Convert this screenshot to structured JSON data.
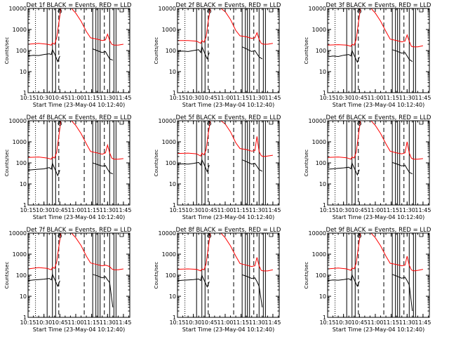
{
  "chart_data": {
    "type": "line",
    "yscale": "log",
    "ylim": [
      1,
      10000
    ],
    "xlim": [
      "10:15",
      "11:51"
    ],
    "y_ticks": [
      "1",
      "10",
      "100",
      "1000",
      "10000"
    ],
    "x_ticks": [
      "10:15",
      "10:30",
      "10:45",
      "11:00",
      "11:15",
      "11:30",
      "11:45"
    ],
    "xlabel": "Start Time (23-May-04 10:12:40)",
    "ylabel": "Counts/sec",
    "series_colors": {
      "events": "#000000",
      "lld": "#ff0000"
    },
    "panels": [
      {
        "title": "Det 1f BLACK = Events, RED = LLD",
        "series": [
          {
            "key": "lld",
            "x": [
              "10:15",
              "10:25",
              "10:33",
              "10:37",
              "10:38",
              "10:40",
              "10:42",
              "10:44",
              "10:46",
              "10:50",
              "10:56",
              "11:00",
              "11:05",
              "11:10",
              "11:14",
              "11:20",
              "11:25",
              "11:28",
              "11:30",
              "11:32",
              "11:34",
              "11:36",
              "11:40",
              "11:45"
            ],
            "y": [
              200,
              220,
              200,
              180,
              230,
              200,
              400,
              2000,
              10000,
              10000,
              10000,
              6000,
              2500,
              800,
              400,
              350,
              300,
              320,
              600,
              300,
              200,
              180,
              180,
              200
            ]
          },
          {
            "key": "events",
            "x": [
              "10:15",
              "10:20",
              "10:25",
              "10:30",
              "10:35",
              "10:37",
              "10:38",
              "10:40",
              "10:43",
              "10:45"
            ],
            "y": [
              55,
              60,
              58,
              65,
              70,
              65,
              110,
              70,
              30,
              55
            ],
            "x2": [
              "11:16",
              "11:20",
              "11:25",
              "11:28",
              "11:30",
              "11:32",
              "11:35"
            ],
            "y2": [
              120,
              100,
              80,
              90,
              60,
              40,
              35
            ]
          }
        ]
      },
      {
        "title": "Det 2f BLACK = Events, RED = LLD",
        "series": [
          {
            "key": "lld",
            "x": [
              "10:15",
              "10:25",
              "10:33",
              "10:37",
              "10:38",
              "10:40",
              "10:42",
              "10:44",
              "10:46",
              "10:50",
              "10:56",
              "11:00",
              "11:05",
              "11:10",
              "11:14",
              "11:20",
              "11:25",
              "11:28",
              "11:30",
              "11:32",
              "11:34",
              "11:36",
              "11:40",
              "11:45"
            ],
            "y": [
              300,
              300,
              280,
              220,
              300,
              250,
              450,
              2500,
              10000,
              10000,
              10000,
              7000,
              3000,
              900,
              500,
              450,
              380,
              400,
              700,
              350,
              220,
              200,
              200,
              220
            ]
          },
          {
            "key": "events",
            "x": [
              "10:15",
              "10:20",
              "10:25",
              "10:30",
              "10:35",
              "10:37",
              "10:38",
              "10:40",
              "10:43",
              "10:45"
            ],
            "y": [
              90,
              95,
              90,
              100,
              110,
              80,
              150,
              90,
              40,
              80
            ],
            "x2": [
              "11:16",
              "11:20",
              "11:25",
              "11:28",
              "11:30",
              "11:32",
              "11:35"
            ],
            "y2": [
              150,
              120,
              90,
              100,
              70,
              50,
              40
            ]
          }
        ]
      },
      {
        "title": "Det 3f BLACK = Events, RED = LLD",
        "series": [
          {
            "key": "lld",
            "x": [
              "10:15",
              "10:25",
              "10:33",
              "10:37",
              "10:38",
              "10:40",
              "10:42",
              "10:44",
              "10:46",
              "10:50",
              "10:56",
              "11:00",
              "11:05",
              "11:10",
              "11:14",
              "11:20",
              "11:25",
              "11:28",
              "11:30",
              "11:32",
              "11:34",
              "11:36",
              "11:40",
              "11:45"
            ],
            "y": [
              180,
              190,
              180,
              160,
              200,
              180,
              350,
              2000,
              10000,
              10000,
              10000,
              6000,
              2500,
              800,
              350,
              300,
              260,
              280,
              550,
              280,
              160,
              150,
              150,
              170
            ]
          },
          {
            "key": "events",
            "x": [
              "10:15",
              "10:20",
              "10:25",
              "10:30",
              "10:35",
              "10:37",
              "10:38",
              "10:40",
              "10:43",
              "10:45"
            ],
            "y": [
              50,
              55,
              52,
              60,
              65,
              55,
              100,
              60,
              28,
              50
            ],
            "x2": [
              "11:16",
              "11:20",
              "11:25",
              "11:28",
              "11:30",
              "11:32",
              "11:35"
            ],
            "y2": [
              110,
              95,
              75,
              80,
              55,
              38,
              30
            ]
          }
        ]
      },
      {
        "title": "Det 4f BLACK = Events, RED = LLD",
        "series": [
          {
            "key": "lld",
            "x": [
              "10:15",
              "10:25",
              "10:33",
              "10:37",
              "10:38",
              "10:40",
              "10:42",
              "10:44",
              "10:46",
              "10:50",
              "10:56",
              "11:00",
              "11:05",
              "11:10",
              "11:14",
              "11:20",
              "11:25",
              "11:28",
              "11:30",
              "11:32",
              "11:34",
              "11:36",
              "11:40",
              "11:45"
            ],
            "y": [
              180,
              190,
              170,
              150,
              190,
              170,
              320,
              1800,
              10000,
              10000,
              10000,
              6000,
              2500,
              800,
              350,
              300,
              260,
              300,
              700,
              300,
              170,
              150,
              150,
              160
            ]
          },
          {
            "key": "events",
            "x": [
              "10:15",
              "10:20",
              "10:25",
              "10:30",
              "10:35",
              "10:37",
              "10:38",
              "10:40",
              "10:43",
              "10:45"
            ],
            "y": [
              45,
              48,
              50,
              52,
              60,
              50,
              95,
              55,
              25,
              45
            ],
            "x2": [
              "11:16",
              "11:20",
              "11:25",
              "11:28",
              "11:30",
              "11:32",
              "11:35"
            ],
            "y2": [
              100,
              85,
              70,
              75,
              50,
              35,
              30
            ]
          }
        ]
      },
      {
        "title": "Det 5f BLACK = Events, RED = LLD",
        "series": [
          {
            "key": "lld",
            "x": [
              "10:15",
              "10:25",
              "10:33",
              "10:37",
              "10:38",
              "10:40",
              "10:42",
              "10:44",
              "10:46",
              "10:50",
              "10:56",
              "11:00",
              "11:05",
              "11:10",
              "11:14",
              "11:20",
              "11:25",
              "11:28",
              "11:30",
              "11:32",
              "11:34",
              "11:36",
              "11:40",
              "11:45"
            ],
            "y": [
              280,
              290,
              270,
              210,
              290,
              240,
              420,
              2400,
              10000,
              10000,
              10000,
              7000,
              3000,
              900,
              480,
              430,
              360,
              380,
              1800,
              350,
              220,
              200,
              210,
              230
            ]
          },
          {
            "key": "events",
            "x": [
              "10:15",
              "10:20",
              "10:25",
              "10:30",
              "10:35",
              "10:37",
              "10:38",
              "10:40",
              "10:43",
              "10:45"
            ],
            "y": [
              85,
              90,
              88,
              95,
              105,
              78,
              140,
              88,
              38,
              78
            ],
            "x2": [
              "11:16",
              "11:20",
              "11:25",
              "11:28",
              "11:30",
              "11:32",
              "11:35"
            ],
            "y2": [
              140,
              115,
              88,
              95,
              68,
              48,
              40
            ]
          }
        ]
      },
      {
        "title": "Det 6f BLACK = Events, RED = LLD",
        "series": [
          {
            "key": "lld",
            "x": [
              "10:15",
              "10:25",
              "10:33",
              "10:37",
              "10:38",
              "10:40",
              "10:42",
              "10:44",
              "10:46",
              "10:50",
              "10:56",
              "11:00",
              "11:05",
              "11:10",
              "11:14",
              "11:20",
              "11:25",
              "11:28",
              "11:30",
              "11:32",
              "11:34",
              "11:36",
              "11:40",
              "11:45"
            ],
            "y": [
              180,
              190,
              175,
              150,
              190,
              170,
              330,
              1900,
              10000,
              10000,
              10000,
              6000,
              2500,
              800,
              360,
              300,
              270,
              300,
              1000,
              300,
              170,
              150,
              150,
              160
            ]
          },
          {
            "key": "events",
            "x": [
              "10:15",
              "10:20",
              "10:25",
              "10:30",
              "10:35",
              "10:37",
              "10:38",
              "10:40",
              "10:43",
              "10:45"
            ],
            "y": [
              50,
              52,
              55,
              58,
              62,
              52,
              98,
              58,
              27,
              48
            ],
            "x2": [
              "11:16",
              "11:20",
              "11:25",
              "11:28",
              "11:30",
              "11:32",
              "11:35"
            ],
            "y2": [
              105,
              90,
              72,
              78,
              52,
              36,
              30
            ]
          }
        ]
      },
      {
        "title": "Det 7f BLACK = Events, RED = LLD",
        "series": [
          {
            "key": "lld",
            "x": [
              "10:15",
              "10:25",
              "10:33",
              "10:37",
              "10:38",
              "10:40",
              "10:42",
              "10:44",
              "10:46",
              "10:50",
              "10:56",
              "11:00",
              "11:05",
              "11:10",
              "11:14",
              "11:20",
              "11:25",
              "11:28",
              "11:30",
              "11:32",
              "11:34",
              "11:36",
              "11:40",
              "11:45"
            ],
            "y": [
              200,
              230,
              210,
              180,
              240,
              210,
              420,
              2200,
              10000,
              10000,
              10000,
              6000,
              2600,
              800,
              380,
              320,
              280,
              300,
              280,
              260,
              200,
              180,
              180,
              200
            ]
          },
          {
            "key": "events",
            "x": [
              "10:15",
              "10:20",
              "10:25",
              "10:30",
              "10:35",
              "10:37",
              "10:38",
              "10:40",
              "10:43",
              "10:45"
            ],
            "y": [
              55,
              60,
              62,
              65,
              70,
              60,
              110,
              65,
              30,
              55
            ],
            "x2": [
              "11:16",
              "11:20",
              "11:25",
              "11:28",
              "11:30",
              "11:32",
              "11:35"
            ],
            "y2": [
              110,
              95,
              75,
              85,
              60,
              45,
              3
            ]
          }
        ]
      },
      {
        "title": "Det 8f BLACK = Events, RED = LLD",
        "series": [
          {
            "key": "lld",
            "x": [
              "10:15",
              "10:25",
              "10:33",
              "10:37",
              "10:38",
              "10:40",
              "10:42",
              "10:44",
              "10:46",
              "10:50",
              "10:56",
              "11:00",
              "11:05",
              "11:10",
              "11:14",
              "11:20",
              "11:25",
              "11:28",
              "11:30",
              "11:32",
              "11:34",
              "11:36",
              "11:40",
              "11:45"
            ],
            "y": [
              190,
              200,
              190,
              160,
              200,
              180,
              350,
              2000,
              10000,
              10000,
              10000,
              6000,
              2500,
              800,
              360,
              300,
              260,
              280,
              700,
              280,
              170,
              160,
              160,
              180
            ]
          },
          {
            "key": "events",
            "x": [
              "10:15",
              "10:20",
              "10:25",
              "10:30",
              "10:35",
              "10:37",
              "10:38",
              "10:40",
              "10:43",
              "10:45"
            ],
            "y": [
              55,
              58,
              60,
              62,
              66,
              56,
              100,
              60,
              28,
              50
            ],
            "x2": [
              "11:16",
              "11:20",
              "11:25",
              "11:28",
              "11:30",
              "11:32",
              "11:35"
            ],
            "y2": [
              105,
              90,
              70,
              75,
              50,
              30,
              3
            ]
          }
        ]
      },
      {
        "title": "Det 9f BLACK = Events, RED = LLD",
        "series": [
          {
            "key": "lld",
            "x": [
              "10:15",
              "10:25",
              "10:33",
              "10:37",
              "10:38",
              "10:40",
              "10:42",
              "10:44",
              "10:46",
              "10:50",
              "10:56",
              "11:00",
              "11:05",
              "11:10",
              "11:14",
              "11:20",
              "11:25",
              "11:28",
              "11:30",
              "11:32",
              "11:34",
              "11:36",
              "11:40",
              "11:45"
            ],
            "y": [
              200,
              220,
              200,
              170,
              220,
              200,
              380,
              2100,
              10000,
              10000,
              10000,
              6000,
              2500,
              800,
              370,
              320,
              280,
              300,
              800,
              300,
              180,
              160,
              170,
              190
            ]
          },
          {
            "key": "events",
            "x": [
              "10:15",
              "10:20",
              "10:25",
              "10:30",
              "10:35",
              "10:37",
              "10:38",
              "10:40",
              "10:43",
              "10:45"
            ],
            "y": [
              55,
              60,
              58,
              62,
              68,
              58,
              105,
              62,
              30,
              52
            ],
            "x2": [
              "11:16",
              "11:20",
              "11:25",
              "11:28",
              "11:30",
              "11:32",
              "11:35"
            ],
            "y2": [
              110,
              92,
              72,
              80,
              55,
              35,
              2
            ]
          }
        ]
      }
    ],
    "vlines": {
      "solid": [
        "10:33",
        "10:38",
        "10:41",
        "11:16",
        "11:19",
        "11:21",
        "11:23",
        "11:32",
        "11:36",
        "11:38"
      ],
      "dashed": [
        "10:44",
        "11:08",
        "11:27"
      ],
      "dotted": [
        "10:22"
      ]
    }
  }
}
